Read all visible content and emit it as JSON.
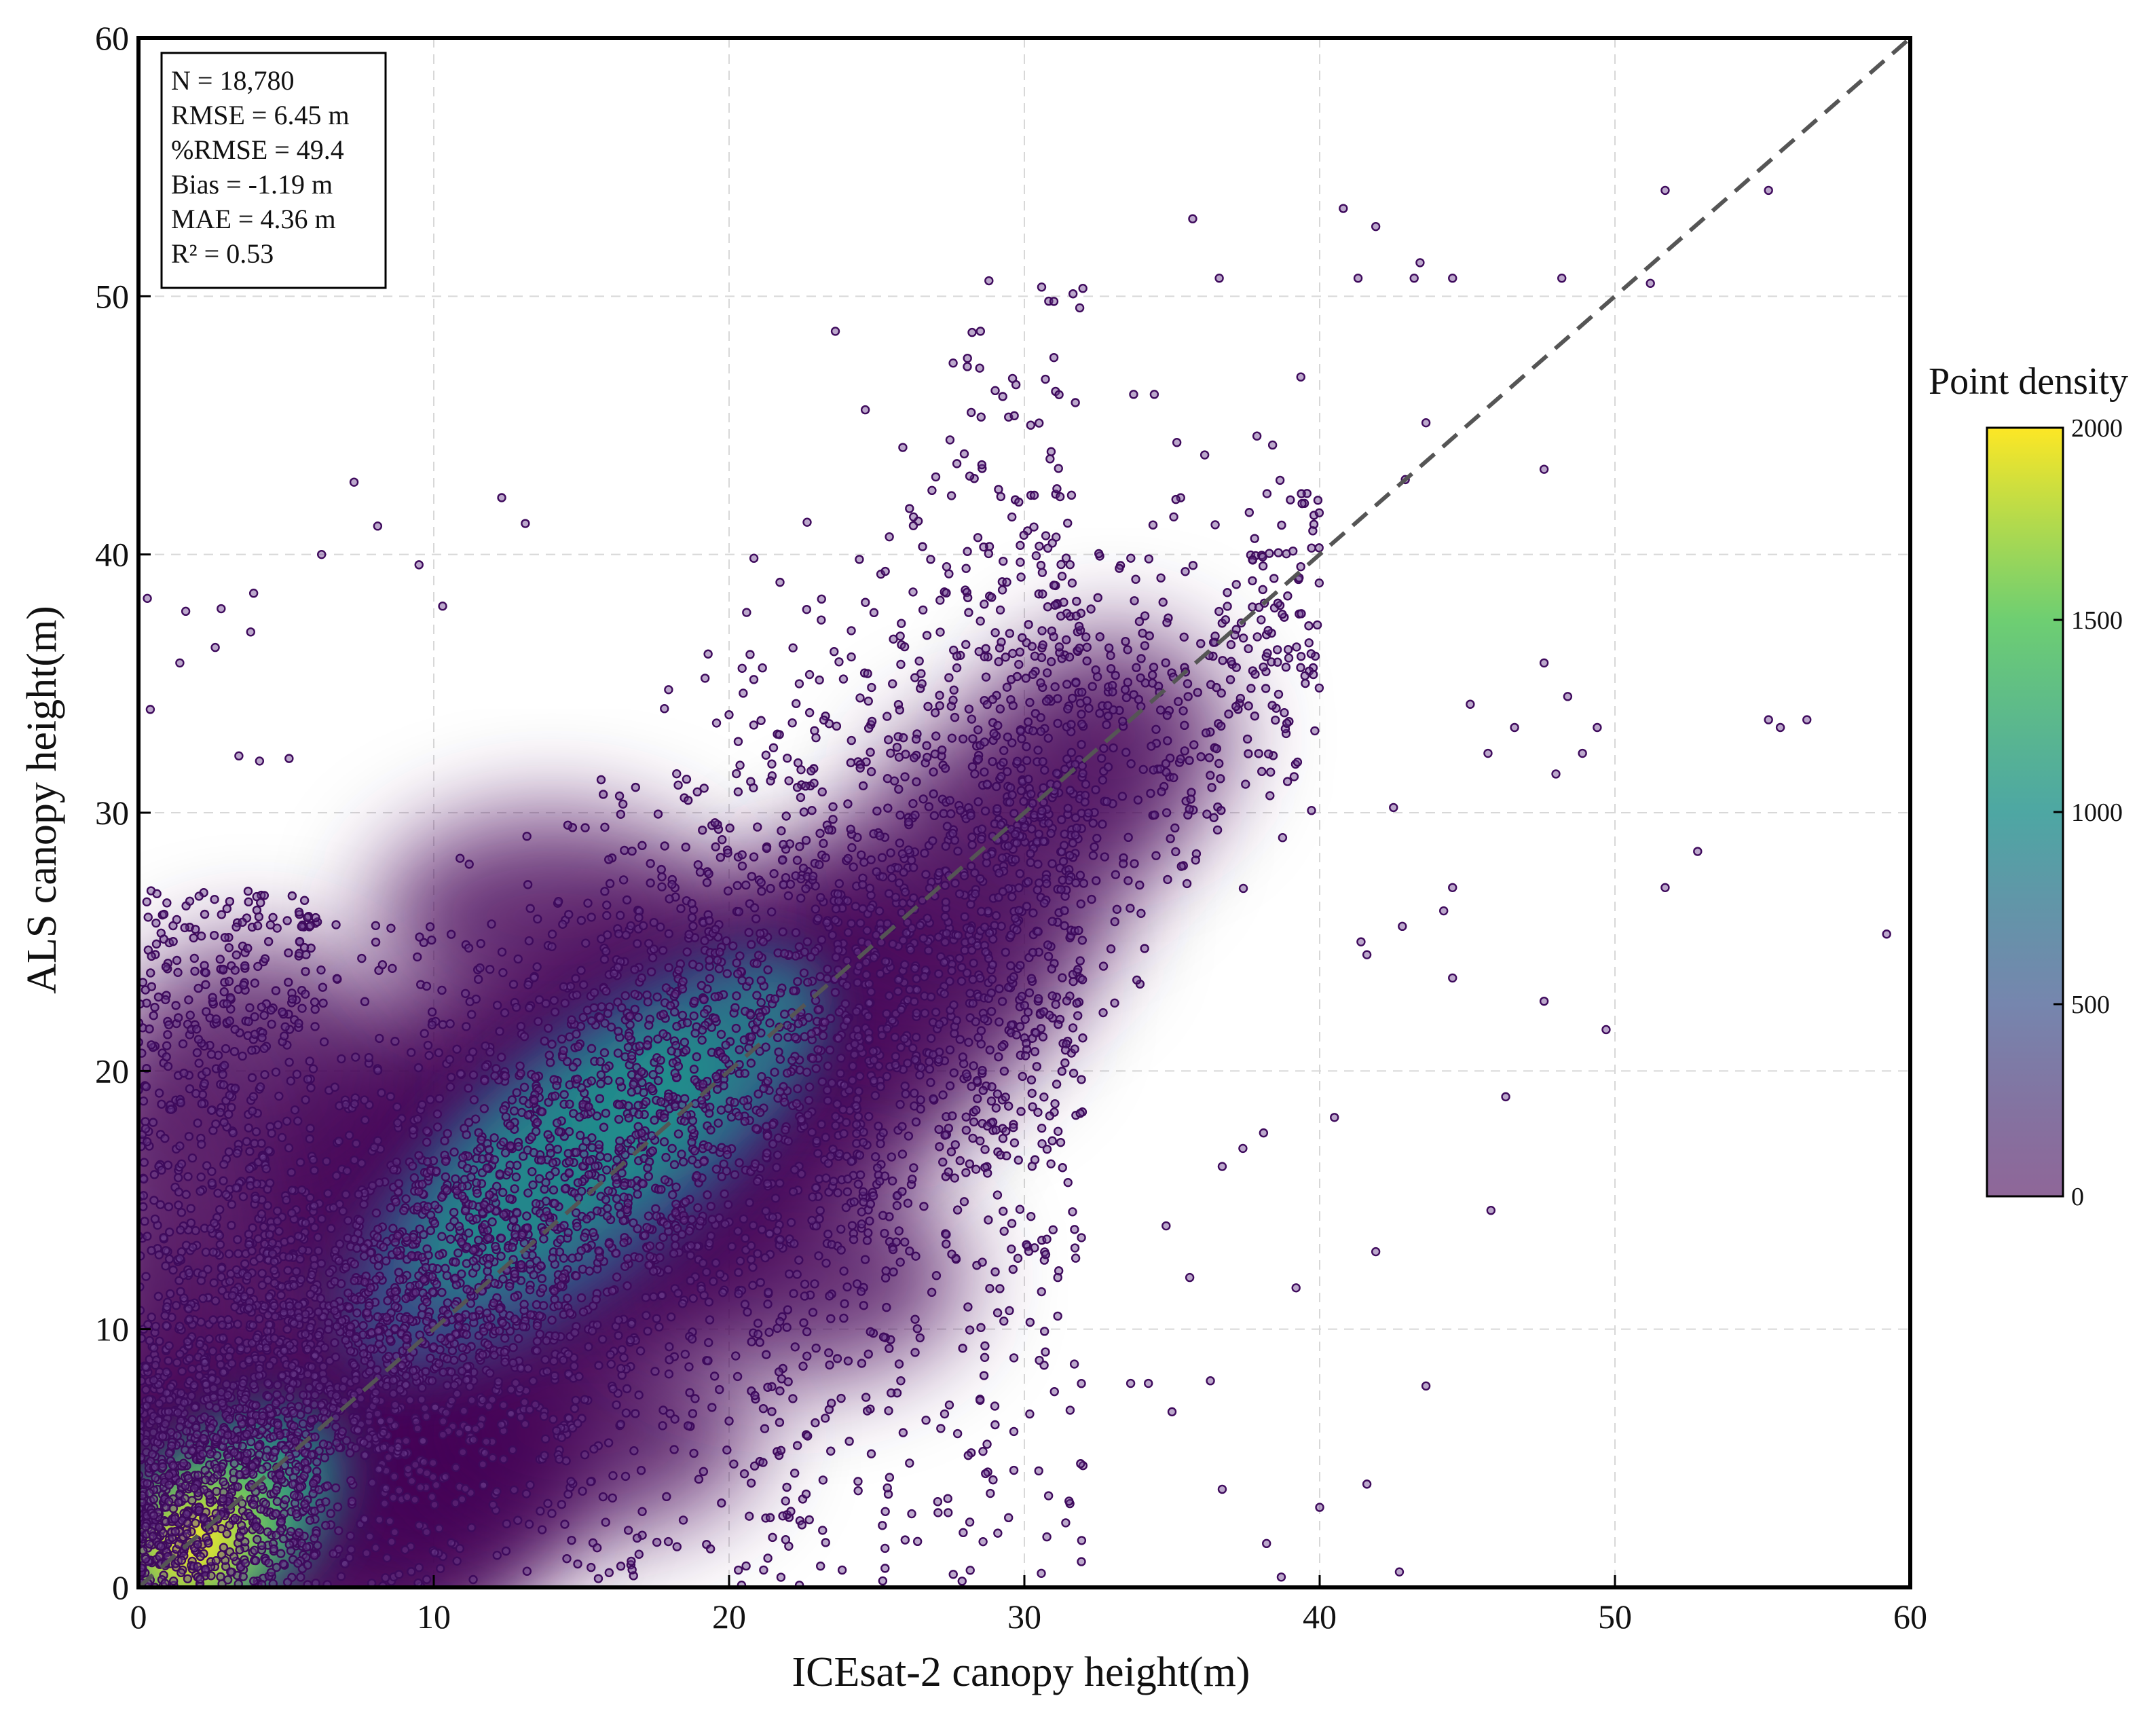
{
  "chart_data": {
    "type": "scatter",
    "xlabel": "ICEsat-2 canopy height(m)",
    "ylabel": "ALS canopy height(m)",
    "xlim": [
      0,
      60
    ],
    "ylim": [
      0,
      60
    ],
    "x_ticks": [
      "0",
      "10",
      "20",
      "30",
      "40",
      "50",
      "60"
    ],
    "y_ticks": [
      "0",
      "10",
      "20",
      "30",
      "40",
      "50",
      "60"
    ],
    "grid": true,
    "reference_line": {
      "style": "dashed",
      "from": [
        0,
        0
      ],
      "to": [
        60,
        60
      ],
      "color": "#555555"
    },
    "stats": [
      "N = 18,780",
      "RMSE = 6.45 m",
      "%RMSE = 49.4",
      "Bias = -1.19 m",
      "MAE = 4.36 m",
      "R² = 0.53"
    ],
    "colorbar": {
      "title": "Point density",
      "range": [
        0,
        2000
      ],
      "ticks": [
        "0",
        "500",
        "1000",
        "1500",
        "2000"
      ],
      "colormap": "viridis",
      "colors": [
        "#440154",
        "#3b528b",
        "#21918c",
        "#5ec962",
        "#fde725"
      ],
      "placement": "right"
    },
    "density_cores": [
      {
        "x": 1.8,
        "y": 1.6,
        "peak": 2000
      },
      {
        "x": 11,
        "y": 17,
        "peak": 1000
      },
      {
        "x": 20,
        "y": 21,
        "peak": 900
      }
    ],
    "outliers": [
      [
        35.7,
        53.0
      ],
      [
        40.8,
        53.4
      ],
      [
        41.9,
        52.7
      ],
      [
        51.7,
        54.1
      ],
      [
        55.2,
        54.1
      ],
      [
        28.8,
        50.6
      ],
      [
        31.0,
        49.8
      ],
      [
        36.6,
        50.7
      ],
      [
        41.3,
        50.7
      ],
      [
        43.2,
        50.7
      ],
      [
        43.4,
        51.3
      ],
      [
        44.5,
        50.7
      ],
      [
        48.2,
        50.7
      ],
      [
        51.2,
        50.5
      ],
      [
        28.2,
        45.5
      ],
      [
        33.7,
        46.2
      ],
      [
        34.4,
        46.2
      ],
      [
        43.6,
        45.1
      ],
      [
        47.6,
        43.3
      ],
      [
        42.9,
        42.9
      ],
      [
        7.3,
        42.8
      ],
      [
        12.3,
        42.2
      ],
      [
        13.1,
        41.2
      ],
      [
        8.1,
        41.1
      ],
      [
        6.2,
        40.0
      ],
      [
        9.5,
        39.6
      ],
      [
        0.3,
        38.3
      ],
      [
        1.6,
        37.8
      ],
      [
        2.8,
        37.9
      ],
      [
        3.9,
        38.5
      ],
      [
        3.8,
        37.0
      ],
      [
        0.4,
        34.0
      ],
      [
        1.4,
        35.8
      ],
      [
        2.6,
        36.4
      ],
      [
        3.4,
        32.2
      ],
      [
        4.1,
        32.0
      ],
      [
        5.1,
        32.1
      ],
      [
        10.3,
        38.0
      ],
      [
        47.6,
        35.8
      ],
      [
        48.4,
        34.5
      ],
      [
        45.1,
        34.2
      ],
      [
        46.6,
        33.3
      ],
      [
        49.4,
        33.3
      ],
      [
        48.9,
        32.3
      ],
      [
        45.7,
        32.3
      ],
      [
        55.2,
        33.6
      ],
      [
        55.6,
        33.3
      ],
      [
        56.5,
        33.6
      ],
      [
        48.0,
        31.5
      ],
      [
        42.5,
        30.2
      ],
      [
        52.8,
        28.5
      ],
      [
        51.7,
        27.1
      ],
      [
        44.5,
        27.1
      ],
      [
        44.2,
        26.2
      ],
      [
        42.8,
        25.6
      ],
      [
        41.4,
        25.0
      ],
      [
        41.6,
        24.5
      ],
      [
        44.5,
        23.6
      ],
      [
        59.2,
        25.3
      ],
      [
        47.6,
        22.7
      ],
      [
        49.7,
        21.6
      ],
      [
        46.3,
        19.0
      ],
      [
        40.5,
        18.2
      ],
      [
        41.9,
        13.0
      ],
      [
        45.8,
        14.6
      ],
      [
        39.2,
        11.6
      ],
      [
        43.6,
        7.8
      ],
      [
        41.6,
        4.0
      ],
      [
        36.7,
        3.8
      ],
      [
        38.2,
        1.7
      ],
      [
        40.0,
        3.1
      ],
      [
        38.7,
        0.4
      ],
      [
        42.7,
        0.6
      ],
      [
        29.1,
        2.1
      ],
      [
        31.4,
        2.5
      ],
      [
        36.3,
        8.0
      ],
      [
        35.0,
        6.8
      ],
      [
        33.6,
        7.9
      ],
      [
        34.2,
        7.9
      ],
      [
        38.1,
        17.6
      ],
      [
        37.4,
        17.0
      ],
      [
        36.7,
        16.3
      ],
      [
        34.8,
        14.0
      ],
      [
        35.6,
        12.0
      ]
    ]
  }
}
